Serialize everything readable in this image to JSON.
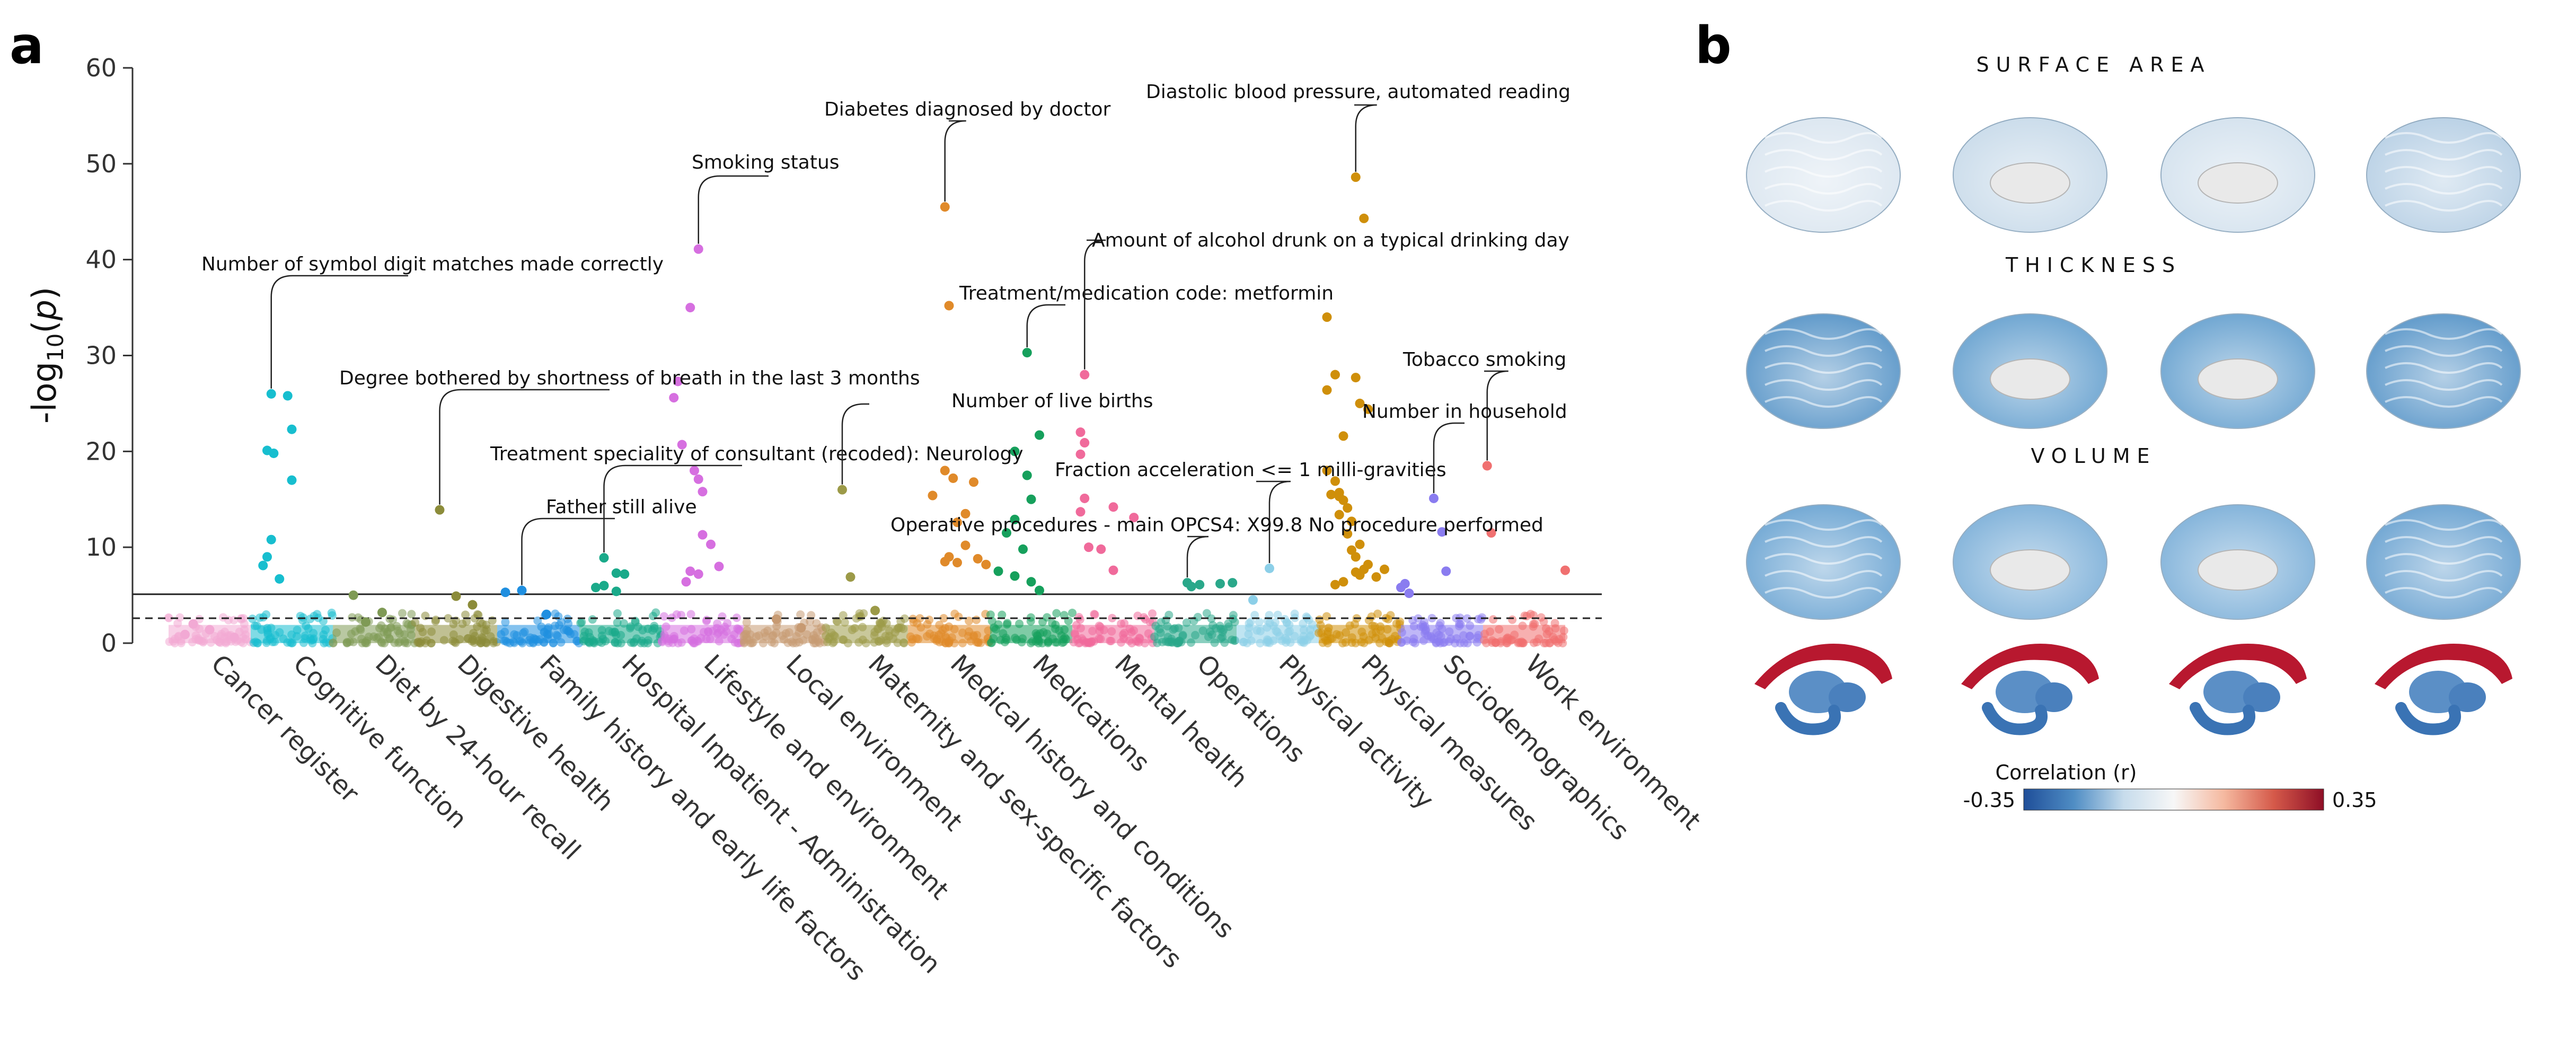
{
  "panels": {
    "a": "a",
    "b": "b"
  },
  "chart_data": [
    {
      "type": "scatter",
      "title": "",
      "xlabel": "",
      "ylabel": "-log10(p)",
      "ylabel_parts": {
        "prefix": "-log",
        "subscript": "10",
        "suffix": "(",
        "variable": "p",
        "close": ")"
      },
      "ylim": [
        0,
        60
      ],
      "yticks": [
        0,
        10,
        20,
        30,
        40,
        50,
        60
      ],
      "ytick_labels": [
        "0",
        "10",
        "20",
        "30",
        "40",
        "50",
        "60"
      ],
      "grid": false,
      "thresholds": [
        {
          "y": 5.1,
          "style": "solid"
        },
        {
          "y": 2.6,
          "style": "dashed"
        }
      ],
      "categories": [
        "Cancer register",
        "Cognitive function",
        "Diet by 24-hour recall",
        "Digestive health",
        "Family history and early life factors",
        "Hospital Inpatient - Administration",
        "Lifestyle and environment",
        "Local environment",
        "Maternity and sex-specific factors",
        "Medical history and conditions",
        "Medications",
        "Mental health",
        "Operations",
        "Physical activity",
        "Physical measures",
        "Sociodemographics",
        "Work environment"
      ],
      "category_colors": [
        "#f2a9d4",
        "#17becf",
        "#7f9a55",
        "#8c8c3a",
        "#1f8fe0",
        "#1aaa8a",
        "#d66fe0",
        "#c79a72",
        "#9c9a48",
        "#e08a2a",
        "#16a05c",
        "#f06a9b",
        "#2aa88a",
        "#8ccfe8",
        "#cf8f0a",
        "#8a7cf0",
        "#f07070"
      ],
      "series": [
        {
          "name": "Cancer register",
          "values": [
            [
              0.2,
              0.9
            ],
            [
              0.5,
              1.4
            ],
            [
              0.8,
              0.6
            ],
            [
              0.3,
              2.0
            ]
          ]
        },
        {
          "name": "Cognitive function",
          "values": [
            [
              0.25,
              26.0
            ],
            [
              0.45,
              25.8
            ],
            [
              0.5,
              22.3
            ],
            [
              0.2,
              20.1
            ],
            [
              0.28,
              19.8
            ],
            [
              0.5,
              17.0
            ],
            [
              0.25,
              10.8
            ],
            [
              0.2,
              9.0
            ],
            [
              0.15,
              8.1
            ],
            [
              0.35,
              6.7
            ]
          ]
        },
        {
          "name": "Diet by 24-hour recall",
          "values": [
            [
              0.25,
              5.0
            ],
            [
              0.6,
              3.2
            ],
            [
              0.4,
              2.2
            ]
          ]
        },
        {
          "name": "Digestive health",
          "values": [
            [
              0.3,
              13.9
            ],
            [
              0.5,
              4.9
            ],
            [
              0.7,
              4.0
            ]
          ]
        },
        {
          "name": "Family history and early life factors",
          "values": [
            [
              0.1,
              5.3
            ],
            [
              0.3,
              5.5
            ],
            [
              0.6,
              3.0
            ]
          ]
        },
        {
          "name": "Hospital Inpatient - Administration",
          "values": [
            [
              0.3,
              8.9
            ],
            [
              0.45,
              7.3
            ],
            [
              0.55,
              7.2
            ],
            [
              0.3,
              6.0
            ],
            [
              0.2,
              5.8
            ],
            [
              0.45,
              5.4
            ]
          ]
        },
        {
          "name": "Lifestyle and environment",
          "values": [
            [
              0.45,
              41.1
            ],
            [
              0.35,
              35.0
            ],
            [
              0.2,
              27.3
            ],
            [
              0.15,
              25.6
            ],
            [
              0.25,
              20.7
            ],
            [
              0.4,
              18.0
            ],
            [
              0.45,
              17.1
            ],
            [
              0.5,
              15.8
            ],
            [
              0.5,
              11.3
            ],
            [
              0.6,
              10.3
            ],
            [
              0.7,
              8.0
            ],
            [
              0.35,
              7.5
            ],
            [
              0.45,
              7.2
            ],
            [
              0.3,
              6.4
            ]
          ]
        },
        {
          "name": "Local environment",
          "values": [
            [
              0.4,
              2.5
            ],
            [
              0.7,
              1.6
            ]
          ]
        },
        {
          "name": "Maternity and sex-specific factors",
          "values": [
            [
              0.2,
              16.0
            ],
            [
              0.3,
              6.9
            ],
            [
              0.6,
              3.4
            ]
          ]
        },
        {
          "name": "Medical history and conditions",
          "values": [
            [
              0.45,
              45.5
            ],
            [
              0.5,
              35.2
            ],
            [
              0.45,
              18.0
            ],
            [
              0.3,
              15.4
            ],
            [
              0.55,
              17.2
            ],
            [
              0.8,
              16.8
            ],
            [
              0.7,
              13.5
            ],
            [
              0.6,
              12.6
            ],
            [
              0.7,
              10.2
            ],
            [
              0.5,
              9.0
            ],
            [
              0.45,
              8.5
            ],
            [
              0.6,
              8.4
            ],
            [
              0.85,
              8.8
            ],
            [
              0.95,
              8.2
            ]
          ]
        },
        {
          "name": "Medications",
          "values": [
            [
              0.45,
              30.3
            ],
            [
              0.6,
              21.7
            ],
            [
              0.3,
              20.0
            ],
            [
              0.45,
              17.5
            ],
            [
              0.5,
              15.0
            ],
            [
              0.3,
              12.9
            ],
            [
              0.2,
              11.5
            ],
            [
              0.4,
              9.8
            ],
            [
              0.1,
              7.5
            ],
            [
              0.3,
              7.0
            ],
            [
              0.5,
              6.4
            ],
            [
              0.6,
              5.5
            ]
          ]
        },
        {
          "name": "Mental health",
          "values": [
            [
              0.15,
              28.0
            ],
            [
              0.1,
              22.0
            ],
            [
              0.15,
              20.9
            ],
            [
              0.1,
              19.7
            ],
            [
              0.15,
              15.1
            ],
            [
              0.5,
              14.2
            ],
            [
              0.1,
              13.7
            ],
            [
              0.2,
              10.0
            ],
            [
              0.35,
              9.8
            ],
            [
              0.75,
              13.1
            ],
            [
              0.5,
              7.6
            ]
          ]
        },
        {
          "name": "Operations",
          "values": [
            [
              0.4,
              6.3
            ],
            [
              0.55,
              6.1
            ],
            [
              0.8,
              6.2
            ],
            [
              0.95,
              6.3
            ],
            [
              0.45,
              5.9
            ]
          ]
        },
        {
          "name": "Physical activity",
          "values": [
            [
              0.4,
              7.8
            ],
            [
              0.2,
              4.5
            ]
          ]
        },
        {
          "name": "Physical measures",
          "values": [
            [
              0.45,
              48.6
            ],
            [
              0.55,
              44.3
            ],
            [
              0.1,
              34.0
            ],
            [
              0.2,
              28.0
            ],
            [
              0.45,
              27.7
            ],
            [
              0.1,
              26.4
            ],
            [
              0.5,
              25.0
            ],
            [
              0.6,
              24.4
            ],
            [
              0.3,
              21.6
            ],
            [
              0.1,
              18.0
            ],
            [
              0.2,
              16.9
            ],
            [
              0.25,
              15.7
            ],
            [
              0.15,
              15.5
            ],
            [
              0.25,
              15.3
            ],
            [
              0.3,
              14.9
            ],
            [
              0.35,
              14.1
            ],
            [
              0.25,
              13.4
            ],
            [
              0.4,
              12.7
            ],
            [
              0.35,
              11.4
            ],
            [
              0.5,
              10.3
            ],
            [
              0.4,
              9.7
            ],
            [
              0.45,
              9.0
            ],
            [
              0.6,
              8.2
            ],
            [
              0.55,
              7.7
            ],
            [
              0.45,
              7.4
            ],
            [
              0.5,
              7.1
            ],
            [
              0.3,
              6.4
            ],
            [
              0.7,
              6.9
            ],
            [
              0.8,
              7.7
            ],
            [
              0.2,
              6.1
            ]
          ]
        },
        {
          "name": "Sociodemographics",
          "values": [
            [
              0.4,
              15.1
            ],
            [
              0.5,
              11.6
            ],
            [
              0.55,
              7.5
            ],
            [
              0.05,
              6.2
            ],
            [
              0.0,
              5.8
            ],
            [
              0.1,
              5.2
            ]
          ]
        },
        {
          "name": "Work environment",
          "values": [
            [
              0.05,
              18.5
            ],
            [
              0.1,
              11.5
            ],
            [
              1.0,
              7.6
            ]
          ]
        }
      ],
      "annotations": [
        {
          "text": "Number of symbol digit matches made correctly",
          "category": 1,
          "x": 0.25,
          "y": 26.0
        },
        {
          "text": "Degree bothered by shortness of breath in the last 3 months",
          "category": 3,
          "x": 0.3,
          "y": 13.9
        },
        {
          "text": "Smoking status",
          "category": 6,
          "x": 0.45,
          "y": 41.1
        },
        {
          "text": "Treatment speciality of consultant (recoded): Neurology",
          "category": 5,
          "x": 0.3,
          "y": 8.9
        },
        {
          "text": "Father still alive",
          "category": 4,
          "x": 0.3,
          "y": 5.5
        },
        {
          "text": "Diabetes diagnosed by doctor",
          "category": 9,
          "x": 0.45,
          "y": 45.5
        },
        {
          "text": "Number of live births",
          "category": 8,
          "x": 0.2,
          "y": 16.0
        },
        {
          "text": "Treatment/medication code: metformin",
          "category": 10,
          "x": 0.45,
          "y": 30.3
        },
        {
          "text": "Amount of alcohol drunk on a typical drinking day",
          "category": 11,
          "x": 0.15,
          "y": 28.0
        },
        {
          "text": "Diastolic blood pressure, automated reading",
          "category": 14,
          "x": 0.45,
          "y": 48.6
        },
        {
          "text": "Fraction acceleration <= 1 milli-gravities",
          "category": 13,
          "x": 0.4,
          "y": 7.8
        },
        {
          "text": "Operative procedures - main OPCS4: X99.8 No procedure performed",
          "category": 12,
          "x": 0.4,
          "y": 6.3
        },
        {
          "text": "Tobacco smoking",
          "category": 16,
          "x": 0.05,
          "y": 18.5
        },
        {
          "text": "Number in household",
          "category": 15,
          "x": 0.4,
          "y": 15.1
        }
      ]
    },
    {
      "type": "heatmap",
      "title": "Correlation (r)",
      "rows": [
        "SURFACE AREA",
        "THICKNESS",
        "VOLUME"
      ],
      "colorbar": {
        "min": -0.35,
        "max": 0.35,
        "min_label": "-0.35",
        "max_label": "0.35",
        "colors": [
          "#1f4e99",
          "#4f8dc4",
          "#c7dcec",
          "#f7f7f7",
          "#f5b9a0",
          "#d55a4a",
          "#8e0e26"
        ]
      },
      "views": [
        "lateral-left",
        "medial-left",
        "medial-right",
        "lateral-right"
      ]
    }
  ]
}
